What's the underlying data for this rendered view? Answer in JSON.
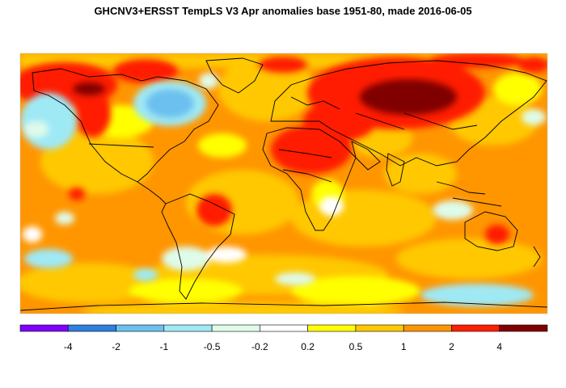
{
  "title": "GHCNV3+ERSST TempLS V3 Apr anomalies base 1951-80, made 2016-06-05",
  "legend": {
    "bins": [
      {
        "color": "#7f00ff"
      },
      {
        "color": "#2f7fe0"
      },
      {
        "color": "#6cc0ef"
      },
      {
        "color": "#9fe9f5"
      },
      {
        "color": "#dffbe9"
      },
      {
        "color": "#ffffff"
      },
      {
        "color": "#ffff00"
      },
      {
        "color": "#ffc800"
      },
      {
        "color": "#ff9600"
      },
      {
        "color": "#ff1e00"
      },
      {
        "color": "#800000"
      }
    ],
    "tick_labels": [
      "-4",
      "-2",
      "-1",
      "-0.5",
      "-0.2",
      "0.2",
      "0.5",
      "1",
      "2",
      "4"
    ]
  },
  "map": {
    "background_anomaly": "#ff9600",
    "regions": [
      {
        "name": "north-atlantic-arctic-warm",
        "color": "#ffc800"
      },
      {
        "name": "alaska-warm",
        "color": "#ff1e00"
      },
      {
        "name": "eastern-canada-cool",
        "color": "#6cc0ef"
      },
      {
        "name": "europe-africa-warm",
        "color": "#ff1e00"
      },
      {
        "name": "siberia-hot",
        "color": "#800000"
      },
      {
        "name": "southern-ocean-cool",
        "color": "#9fe9f5"
      }
    ]
  }
}
